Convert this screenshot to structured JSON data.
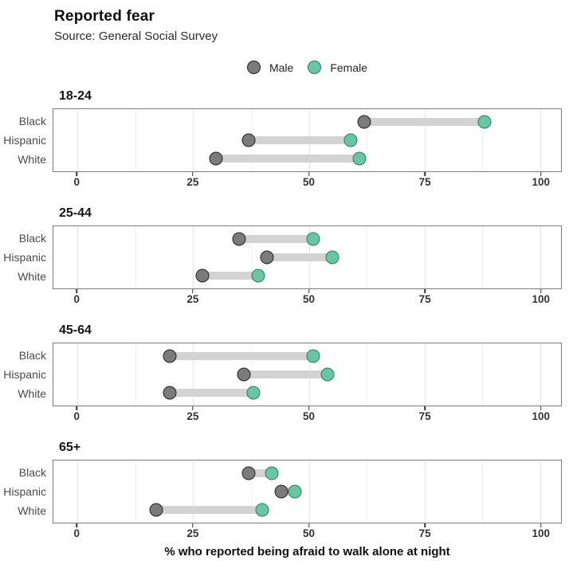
{
  "header": {
    "title": "Reported fear",
    "subtitle": "Source: General Social Survey"
  },
  "legend": {
    "position": "top-center",
    "items": [
      {
        "label": "Male",
        "color": "#7b7b7b",
        "stroke": "#232323"
      },
      {
        "label": "Female",
        "color": "#68c6a2",
        "stroke": "#2c7a60"
      }
    ]
  },
  "axis": {
    "label": "% who reported being afraid to walk alone at night",
    "ticks": [
      "0",
      "25",
      "50",
      "75",
      "100"
    ],
    "tick_values": [
      0,
      25,
      50,
      75,
      100
    ],
    "minor_gridlines": [
      12.5,
      37.5,
      62.5,
      87.5
    ],
    "domain": [
      -5.2,
      104.5
    ]
  },
  "colors": {
    "male_fill": "#7b7b7b",
    "male_stroke": "#232323",
    "female_fill": "#68c6a2",
    "female_stroke": "#2c7a60",
    "bar": "#d3d3d3",
    "panel_border": "#7d7d7d",
    "grid_major": "#e5e5e5",
    "grid_minor": "#f1f1f1"
  },
  "chart_data": {
    "type": "dumbbell",
    "title": "Reported fear",
    "subtitle": "Source: General Social Survey",
    "xlabel": "% who reported being afraid to walk alone at night",
    "xlim": [
      0,
      100
    ],
    "grid": true,
    "legend_position": "top",
    "categories": [
      "Black",
      "Hispanic",
      "White"
    ],
    "facets": [
      {
        "age_group": "18-24",
        "series": [
          {
            "name": "Male",
            "values": [
              62,
              37,
              30
            ]
          },
          {
            "name": "Female",
            "values": [
              88,
              59,
              61
            ]
          }
        ]
      },
      {
        "age_group": "25-44",
        "series": [
          {
            "name": "Male",
            "values": [
              35,
              41,
              27
            ]
          },
          {
            "name": "Female",
            "values": [
              51,
              55,
              39
            ]
          }
        ]
      },
      {
        "age_group": "45-64",
        "series": [
          {
            "name": "Male",
            "values": [
              20,
              36,
              20
            ]
          },
          {
            "name": "Female",
            "values": [
              51,
              54,
              38
            ]
          }
        ]
      },
      {
        "age_group": "65+",
        "series": [
          {
            "name": "Male",
            "values": [
              37,
              44,
              17
            ]
          },
          {
            "name": "Female",
            "values": [
              42,
              47,
              40
            ]
          }
        ]
      }
    ]
  }
}
